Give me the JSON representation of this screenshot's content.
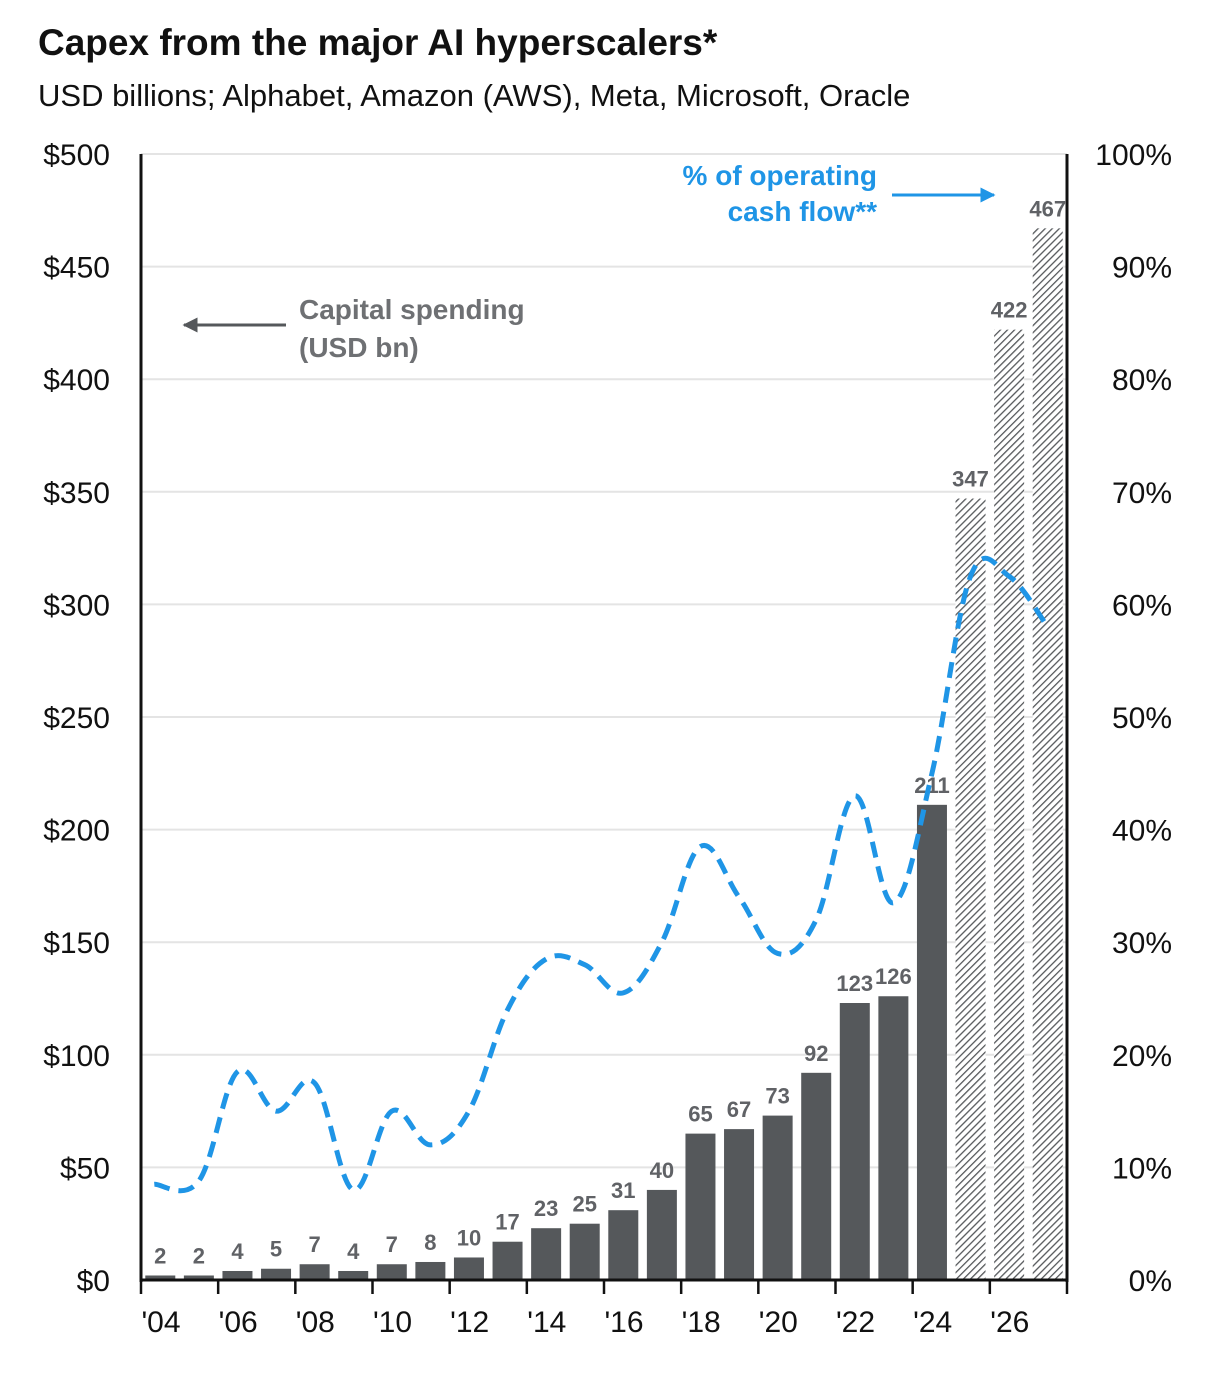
{
  "chart_data": {
    "type": "bar",
    "title": "Capex from the major AI hyperscalers*",
    "subtitle": "USD billions; Alphabet, Amazon (AWS), Meta, Microsoft, Oracle",
    "x": [
      "2004",
      "2005",
      "2006",
      "2007",
      "2008",
      "2009",
      "2010",
      "2011",
      "2012",
      "2013",
      "2014",
      "2015",
      "2016",
      "2017",
      "2018",
      "2019",
      "2020",
      "2021",
      "2022",
      "2023",
      "2024",
      "2025",
      "2026",
      "2027"
    ],
    "x_tick_labels": [
      "'04",
      "'06",
      "'08",
      "'10",
      "'12",
      "'14",
      "'16",
      "'18",
      "'20",
      "'22",
      "'24",
      "'26"
    ],
    "series": [
      {
        "name": "Capital spending (USD bn)",
        "type": "bar",
        "axis": "left",
        "color": "#55585b",
        "values": [
          2,
          2,
          4,
          5,
          7,
          4,
          7,
          8,
          10,
          17,
          23,
          25,
          31,
          40,
          65,
          67,
          73,
          92,
          123,
          126,
          211,
          347,
          422,
          467
        ],
        "labels": [
          "2",
          "2",
          "4",
          "5",
          "7",
          "4",
          "7",
          "8",
          "10",
          "17",
          "23",
          "25",
          "31",
          "40",
          "65",
          "67",
          "73",
          "92",
          "123",
          "126",
          "211",
          "347",
          "422",
          "467"
        ],
        "estimate_from": "2025"
      },
      {
        "name": "% of operating cash flow**",
        "type": "line",
        "style": "dashed",
        "axis": "right",
        "color": "#1f95e6",
        "values": [
          8.5,
          8.8,
          18.5,
          15,
          17.5,
          8,
          15,
          12,
          15,
          24,
          28.5,
          28,
          25.5,
          30,
          38.5,
          34,
          29,
          32,
          43,
          33.5,
          45,
          62.5,
          62.5,
          58
        ]
      }
    ],
    "ylim_left": [
      0,
      500
    ],
    "yticks_left": [
      "$0",
      "$50",
      "$100",
      "$150",
      "$200",
      "$250",
      "$300",
      "$350",
      "$400",
      "$450",
      "$500"
    ],
    "ylim_right": [
      0,
      100
    ],
    "yticks_right": [
      "0%",
      "10%",
      "20%",
      "30%",
      "40%",
      "50%",
      "60%",
      "70%",
      "80%",
      "90%",
      "100%"
    ],
    "grid": true,
    "annotations": {
      "capital_spending": [
        "Capital spending",
        "(USD bn)"
      ],
      "cash_flow": [
        "% of operating",
        "cash flow**"
      ]
    },
    "colors": {
      "bar": "#55585b",
      "hatch": "#55585b",
      "line": "#1f95e6",
      "arrow_grey": "#55585b",
      "grid": "#e4e4e4",
      "label": "#606266"
    }
  }
}
